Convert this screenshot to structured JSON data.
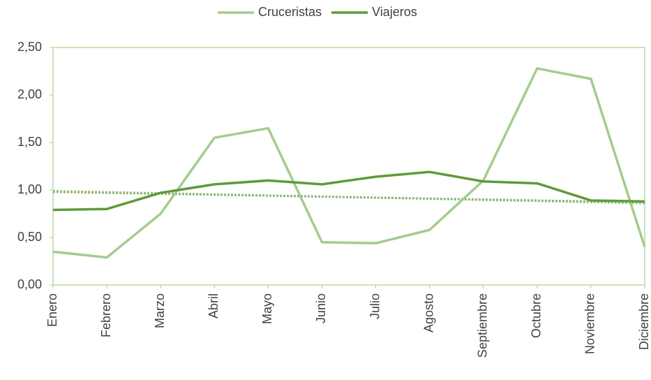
{
  "chart_data": {
    "type": "line",
    "categories": [
      "Enero",
      "Febrero",
      "Marzo",
      "Abril",
      "Mayo",
      "Junio",
      "Julio",
      "Agosto",
      "Septiembre",
      "Octubre",
      "Noviembre",
      "Diciembre"
    ],
    "series": [
      {
        "name": "Cruceristas",
        "color": "#a3cc8f",
        "values": [
          0.35,
          0.29,
          0.75,
          1.55,
          1.65,
          0.45,
          0.44,
          0.58,
          1.1,
          2.28,
          2.17,
          0.4
        ]
      },
      {
        "name": "Viajeros",
        "color": "#5e9a3d",
        "values": [
          0.79,
          0.8,
          0.97,
          1.06,
          1.1,
          1.06,
          1.14,
          1.19,
          1.09,
          1.07,
          0.89,
          0.88
        ]
      }
    ],
    "trendlines": [
      {
        "color": "#a3cc8f",
        "values": [
          0.99,
          0.86
        ]
      },
      {
        "color": "#8fb87a",
        "values": [
          0.98,
          0.87
        ]
      }
    ],
    "ylim": [
      0,
      2.5
    ],
    "yticks": [
      {
        "value": 0,
        "label": "0,00"
      },
      {
        "value": 0.5,
        "label": "0,50"
      },
      {
        "value": 1,
        "label": "1,00"
      },
      {
        "value": 1.5,
        "label": "1,50"
      },
      {
        "value": 2,
        "label": "2,00"
      },
      {
        "value": 2.5,
        "label": "2,50"
      }
    ],
    "legend": "top"
  }
}
